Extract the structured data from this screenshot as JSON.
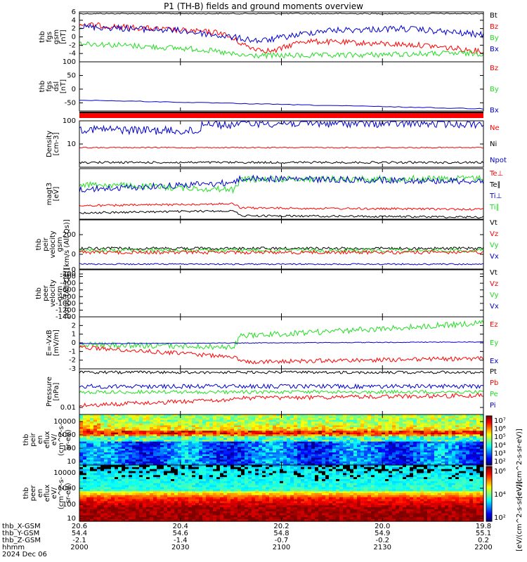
{
  "title": "P1 (TH-B) fields and ground moments overview",
  "colors": {
    "black": "#000000",
    "red": "#ff0000",
    "green": "#22dd22",
    "blue": "#0000cc"
  },
  "chart_data": {
    "type": "line",
    "x_ticks": [
      "2000",
      "2030",
      "2100",
      "2130",
      "2200"
    ],
    "ephemeris": [
      {
        "label": "thb_X-GSM",
        "values": [
          "20.6",
          "20.4",
          "20.2",
          "20.0",
          "19.8"
        ]
      },
      {
        "label": "thb_Y-GSM",
        "values": [
          "54.4",
          "54.6",
          "54.8",
          "54.9",
          "55.1"
        ]
      },
      {
        "label": "thb_Z-GSM",
        "values": [
          "-2.1",
          "-1.4",
          "-0.7",
          "-0.2",
          "0.2"
        ]
      },
      {
        "label": "hhmm",
        "values": [
          "2000",
          "2030",
          "2100",
          "2130",
          "2200"
        ]
      }
    ],
    "date_label": "2024 Dec 06",
    "panels": [
      {
        "id": "fgs",
        "ylabel": [
          "thb",
          "fgs",
          "gsm",
          "[nT]"
        ],
        "ylim": [
          -6,
          6
        ],
        "ticks": [
          "6",
          "4",
          "2",
          "0",
          "-2",
          "-4"
        ],
        "legend": [
          {
            "name": "Bt",
            "color": "#000000"
          },
          {
            "name": "Bz",
            "color": "#ff0000"
          },
          {
            "name": "By",
            "color": "#22dd22"
          },
          {
            "name": "Bx",
            "color": "#0000cc"
          }
        ]
      },
      {
        "id": "fgs_dsl",
        "ylabel": [
          "thb",
          "fgs",
          "dsl",
          "[nT]"
        ],
        "ylim": [
          -80,
          100
        ],
        "ticks": [
          "100",
          "50",
          "0",
          "-50"
        ],
        "legend": [
          {
            "name": "Bz",
            "color": "#ff0000"
          },
          {
            "name": "By",
            "color": "#22dd22"
          },
          {
            "name": "Bx",
            "color": "#0000cc"
          }
        ]
      },
      {
        "id": "density",
        "ylabel": [
          "Density",
          "[cm-3]"
        ],
        "ylim": [
          1,
          100
        ],
        "ticks": [
          "100",
          "10"
        ],
        "legend": [
          {
            "name": "Ne",
            "color": "#ff0000"
          },
          {
            "name": "Ni",
            "color": "#000000"
          },
          {
            "name": "Npot",
            "color": "#0000cc"
          }
        ]
      },
      {
        "id": "temp",
        "ylabel": [
          "magt3",
          "[eV]"
        ],
        "ticks": [],
        "legend": [
          {
            "name": "Te⊥",
            "color": "#ff0000"
          },
          {
            "name": "Te∥",
            "color": "#000000"
          },
          {
            "name": "Ti⊥",
            "color": "#0000cc"
          },
          {
            "name": "Ti∥",
            "color": "#22dd22"
          }
        ]
      },
      {
        "id": "peir_vel",
        "ylabel": [
          "thb",
          "peir",
          "velocity",
          "gsm",
          "[km/s (All Qs)]"
        ],
        "ylim": [
          -150,
          350
        ],
        "ticks": [
          "200",
          "0",
          "-200"
        ],
        "legend": [
          {
            "name": "Vt",
            "color": "#000000"
          },
          {
            "name": "Vz",
            "color": "#ff0000"
          },
          {
            "name": "Vy",
            "color": "#22dd22"
          },
          {
            "name": "Vx",
            "color": "#0000cc"
          }
        ]
      },
      {
        "id": "peer_vel",
        "ylabel": [
          "thb",
          "peer",
          "velocity",
          "gsm",
          "[km/s (All Qs)]"
        ],
        "ylim": [
          -1400,
          0
        ],
        "ticks": [
          "0",
          "-200",
          "-400",
          "-600",
          "-800",
          "-1000",
          "-1200",
          "-1400"
        ],
        "legend": [
          {
            "name": "Vt",
            "color": "#000000"
          },
          {
            "name": "Vz",
            "color": "#ff0000"
          },
          {
            "name": "Vy",
            "color": "#22dd22"
          },
          {
            "name": "Vx",
            "color": "#0000cc"
          }
        ]
      },
      {
        "id": "efield",
        "ylabel": [
          "E=-VxB",
          "[mV/m]"
        ],
        "ylim": [
          -3,
          3
        ],
        "ticks": [
          "2",
          "1",
          "0",
          "-1",
          "-2",
          "-3"
        ],
        "legend": [
          {
            "name": "Ez",
            "color": "#ff0000"
          },
          {
            "name": "Ey",
            "color": "#22dd22"
          },
          {
            "name": "Ex",
            "color": "#0000cc"
          }
        ]
      },
      {
        "id": "pressure",
        "ylabel": [
          "Pressure",
          "[nPa]"
        ],
        "ticks": [
          "0.01"
        ],
        "legend": [
          {
            "name": "Pt",
            "color": "#000000"
          },
          {
            "name": "Pb",
            "color": "#ff0000"
          },
          {
            "name": "Pe",
            "color": "#22dd22"
          },
          {
            "name": "Pi",
            "color": "#0000cc"
          }
        ]
      },
      {
        "id": "peir_en",
        "ylabel": [
          "thb",
          "peir",
          "en",
          "eflux",
          "eV/",
          "(cm^2-s-",
          "sr-eV)"
        ],
        "ticks": [
          "10000",
          "1000",
          "100",
          "10"
        ]
      },
      {
        "id": "peer_en",
        "ylabel": [
          "thb",
          "peer",
          "en",
          "eflux",
          "eV/",
          "(cm^2-s-",
          "sr-eV)"
        ],
        "ticks": [
          "10000",
          "1000",
          "100",
          "10"
        ]
      }
    ],
    "colorbar1": {
      "ticks": [
        "10⁷",
        "10⁶",
        "10⁵",
        "10⁴",
        "10³",
        "10²"
      ]
    },
    "colorbar2": {
      "ticks": [
        "10⁶",
        "10⁴",
        "10²"
      ]
    },
    "colorbar_label": "[eV/(cm^2-s-sr-eV)]",
    "colorbar1_label": "[eV/(cm^2-s-sr-eV)]"
  }
}
